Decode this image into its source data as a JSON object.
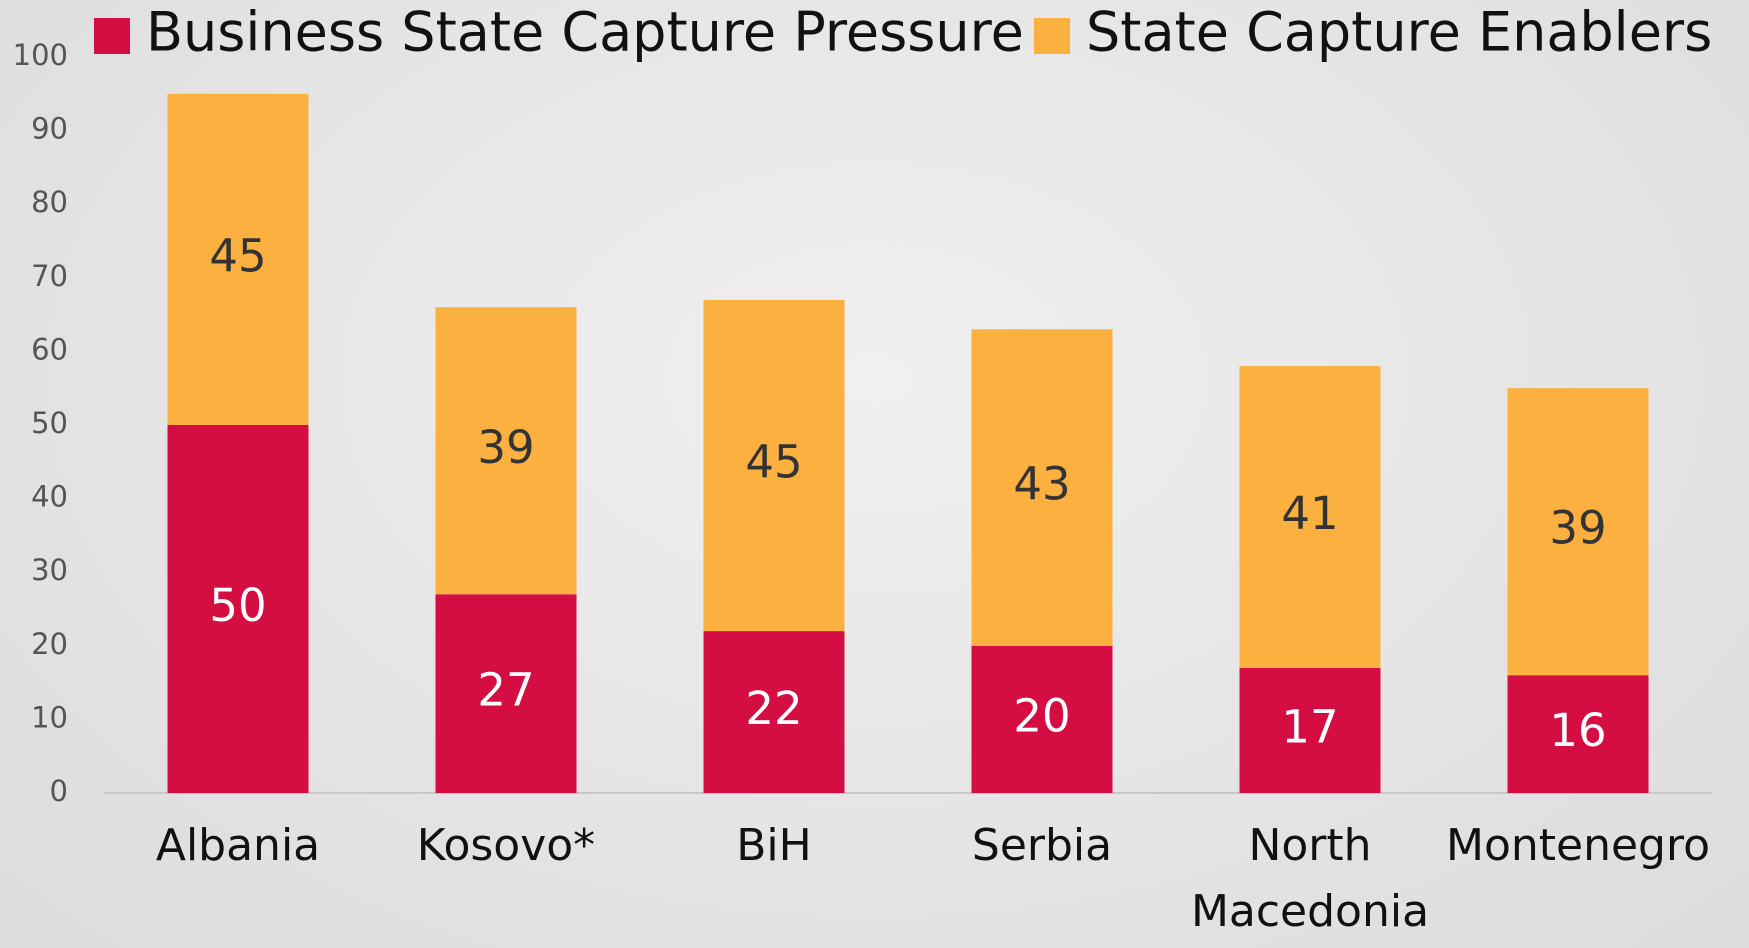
{
  "chart_data": {
    "type": "stacked_bar",
    "categories": [
      "Albania",
      "Kosovo*",
      "BiH",
      "Serbia",
      "North Macedonia",
      "Montenegro"
    ],
    "series": [
      {
        "name": "Business State Capture Pressure",
        "color": "#d40e43",
        "values": [
          50,
          27,
          22,
          20,
          17,
          16
        ]
      },
      {
        "name": "State Capture Enablers",
        "color": "#fbb040",
        "values": [
          45,
          39,
          45,
          43,
          41,
          39
        ]
      }
    ],
    "ylim": [
      0,
      100
    ],
    "yticks": [
      0,
      10,
      20,
      30,
      40,
      50,
      60,
      70,
      80,
      90,
      100
    ],
    "grid": false,
    "legend": "top"
  }
}
